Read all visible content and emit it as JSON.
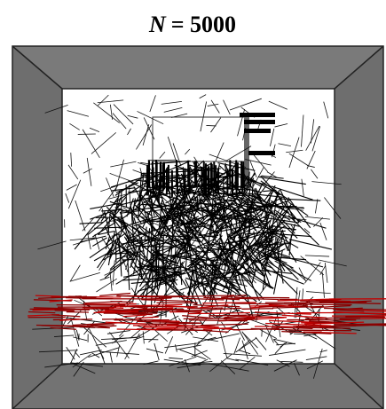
{
  "title": {
    "symbol": "N",
    "text": "= 5000"
  }
}
